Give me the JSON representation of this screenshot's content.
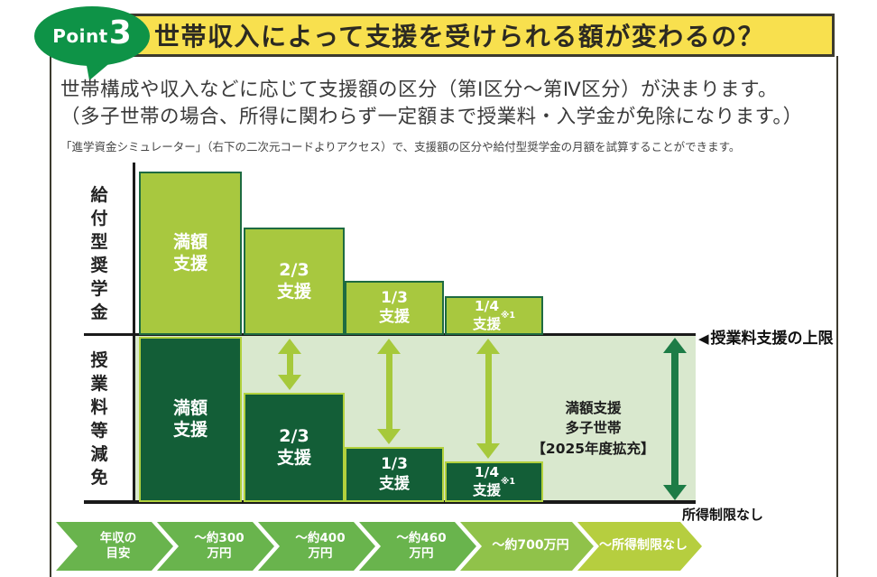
{
  "header": {
    "badge_prefix": "Point",
    "badge_number": "3",
    "title": "世帯収入によって支援を受けられる額が変わるの？"
  },
  "intro": {
    "line1": "世帯構成や収入などに応じて支援額の区分（第Ⅰ区分～第Ⅳ区分）が決まります。",
    "line2": "（多子世帯の場合、所得に関わらず一定額まで授業料・入学金が免除になります。）",
    "line3": "「進学資金シミュレーター」（右下の二次元コードよりアクセス）で、支援額の区分や給付型奨学金の月額を試算することができます。"
  },
  "chart": {
    "row_labels": {
      "top": "給付型奨学金",
      "bottom": "授業料等減免"
    },
    "top_bars": [
      {
        "label": "満額\n支援"
      },
      {
        "label": "2/3\n支援"
      },
      {
        "label": "1/3\n支援"
      },
      {
        "label": "1/4\n支援",
        "note": "※1"
      }
    ],
    "bottom_bars": [
      {
        "label": "満額\n支援"
      },
      {
        "label": "2/3\n支援"
      },
      {
        "label": "1/3\n支援"
      },
      {
        "label": "1/4\n支援",
        "note": "※1"
      }
    ],
    "upper_limit_marker": "◀",
    "upper_limit_label": "授業料支援の上限",
    "annotation": {
      "line1": "満額支援",
      "line2": "多子世帯",
      "line3": "【2025年度拡充】"
    },
    "no_income_limit": "所得制限なし"
  },
  "ribbon": {
    "segments": [
      {
        "label": "年収の\n目安"
      },
      {
        "label": "～約300\n万円"
      },
      {
        "label": "～約400\n万円"
      },
      {
        "label": "～約460\n万円"
      },
      {
        "label": "～約700万円"
      },
      {
        "label": "～所得制限なし"
      }
    ]
  },
  "colors": {
    "banner_yellow": "#f8e04e",
    "badge_green": "#0e9347",
    "bar_light_green": "#a8c83f",
    "bar_light_border": "#1e6b41",
    "bar_dark_green": "#135e37",
    "bar_dark_border": "#b2d13d",
    "lower_background": "#d9e8ce",
    "arrow_light": "#a6c93b",
    "arrow_dark": "#1d7c46",
    "ribbon_green": "#69b44d",
    "ribbon_mid_green": "#90c24a",
    "ribbon_yellow_green": "#b6ce3f",
    "line_black": "#1a1a1a"
  },
  "chart_data": {
    "type": "bar",
    "title": "世帯収入によって支援を受けられる額が変わるの？",
    "categories": [
      "満額支援",
      "2/3支援",
      "1/3支援",
      "1/4支援※1"
    ],
    "income_brackets": [
      "年収の目安",
      "～約300万円",
      "～約400万円",
      "～約460万円",
      "～約700万円",
      "～所得制限なし"
    ],
    "series": [
      {
        "name": "給付型奨学金",
        "values": [
          1,
          0.667,
          0.333,
          0.25
        ]
      },
      {
        "name": "授業料等減免",
        "values": [
          1,
          0.667,
          0.333,
          0.25
        ]
      }
    ],
    "annotations": [
      "授業料支援の上限",
      "満額支援 多子世帯【2025年度拡充】",
      "所得制限なし"
    ],
    "legend_position": "none",
    "grid": false
  }
}
